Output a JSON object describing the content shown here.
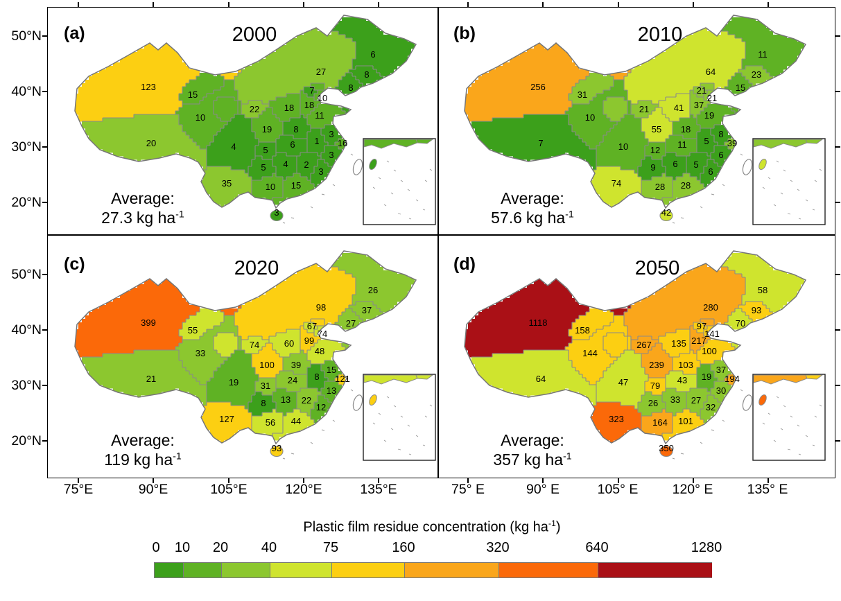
{
  "figure": {
    "panels": [
      {
        "tag": "(a)",
        "year": "2000",
        "average_label": "Average:",
        "average_value": "27.3",
        "average_unit": "kg ha",
        "average_exp": "-1"
      },
      {
        "tag": "(b)",
        "year": "2010",
        "average_label": "Average:",
        "average_value": "57.6",
        "average_unit": "kg ha",
        "average_exp": "-1"
      },
      {
        "tag": "(c)",
        "year": "2020",
        "average_label": "Average:",
        "average_value": "119",
        "average_unit": "kg ha",
        "average_exp": "-1"
      },
      {
        "tag": "(d)",
        "year": "2050",
        "average_label": "Average:",
        "average_value": "357",
        "average_unit": "kg ha",
        "average_exp": "-1"
      }
    ],
    "axes": {
      "lat_ticks": [
        "50°N",
        "40°N",
        "30°N",
        "20°N"
      ],
      "lon_ticks_left": [
        "75°E",
        "90°E",
        "105°E",
        "120°E",
        "135°E"
      ],
      "lon_ticks_right": [
        "75° E",
        "90° E",
        "105° E",
        "120° E",
        "135° E"
      ]
    },
    "legend": {
      "title_prefix": "Plastic film residue concentration (kg ha",
      "title_exp": "-1",
      "title_suffix": ")",
      "tick_labels": [
        "0",
        "10",
        "20",
        "40",
        "75",
        "160",
        "320",
        "640",
        "1280"
      ]
    }
  },
  "chart_data": {
    "type": "heatmap",
    "subtype": "choropleth-map-of-china-provinces",
    "title": "Plastic film residue concentration (kg ha-1)",
    "unit": "kg ha-1",
    "colorbar_breaks": [
      0,
      10,
      20,
      40,
      75,
      160,
      320,
      640,
      1280
    ],
    "bin_colors": [
      "#3CA01B",
      "#5FB224",
      "#8CC72F",
      "#CFE42E",
      "#FCCF12",
      "#FAA61B",
      "#FB6909",
      "#AA1016"
    ],
    "lat_axis_ticks_deg_N": [
      50,
      40,
      30,
      20
    ],
    "lon_axis_ticks_deg_E": [
      75,
      90,
      105,
      120,
      135
    ],
    "legend_position": "bottom",
    "panels": [
      {
        "label": "(a)",
        "year": 2000,
        "average_kg_per_ha": 27.3,
        "region_values": [
          123,
          20,
          10,
          15,
          27,
          6,
          8,
          8,
          7,
          10,
          18,
          18,
          22,
          19,
          11,
          8,
          3,
          1,
          16,
          6,
          3,
          4,
          5,
          5,
          4,
          2,
          3,
          35,
          10,
          15,
          3
        ]
      },
      {
        "label": "(b)",
        "year": 2010,
        "average_kg_per_ha": 57.6,
        "region_values": [
          256,
          7,
          10,
          31,
          64,
          11,
          23,
          15,
          21,
          21,
          37,
          41,
          21,
          55,
          19,
          18,
          8,
          5,
          39,
          11,
          6,
          10,
          12,
          9,
          6,
          5,
          6,
          74,
          28,
          28,
          42
        ]
      },
      {
        "label": "(c)",
        "year": 2020,
        "average_kg_per_ha": 119,
        "region_values": [
          399,
          21,
          33,
          55,
          98,
          26,
          37,
          27,
          67,
          74,
          99,
          60,
          74,
          100,
          48,
          39,
          15,
          8,
          121,
          24,
          13,
          19,
          31,
          8,
          13,
          22,
          12,
          127,
          56,
          44,
          93
        ]
      },
      {
        "label": "(d)",
        "year": 2050,
        "average_kg_per_ha": 357,
        "region_values": [
          1118,
          64,
          144,
          158,
          280,
          58,
          93,
          70,
          97,
          141,
          217,
          135,
          267,
          239,
          100,
          103,
          37,
          19,
          194,
          43,
          30,
          47,
          79,
          26,
          33,
          27,
          32,
          323,
          164,
          101,
          350
        ]
      }
    ],
    "region_values_note": "31 numeric labels per map panel, one per mainland province region shown on the map"
  }
}
